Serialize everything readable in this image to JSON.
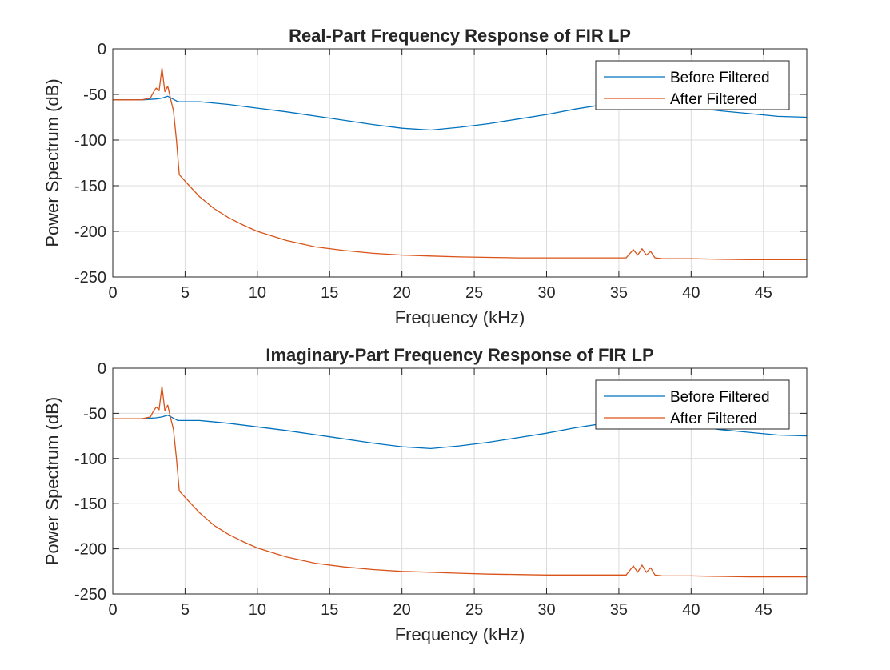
{
  "figure": {
    "colors": {
      "series_1": "#0072BD",
      "series_2": "#D95319",
      "grid": "#dcdcdc",
      "axes": "#262626"
    }
  },
  "chart_data": [
    {
      "type": "line",
      "title": "Real-Part Frequency Response of FIR LP",
      "xlabel": "Frequency (kHz)",
      "ylabel": "Power Spectrum (dB)",
      "xlim": [
        0,
        48
      ],
      "ylim": [
        -250,
        0
      ],
      "xticks": [
        0,
        5,
        10,
        15,
        20,
        25,
        30,
        35,
        40,
        45
      ],
      "yticks": [
        0,
        -50,
        -100,
        -150,
        -200,
        -250
      ],
      "grid": true,
      "legend_position": "top-right",
      "series": [
        {
          "name": "Before Filtered",
          "x": [
            0,
            2,
            3,
            3.4,
            3.8,
            4.5,
            6,
            8,
            10,
            12,
            15,
            18,
            20,
            22,
            24,
            26,
            28,
            30,
            32,
            34,
            35,
            36,
            37,
            38,
            40,
            42,
            44,
            46,
            48
          ],
          "y": [
            -56,
            -56,
            -55,
            -54,
            -52,
            -58,
            -58,
            -61,
            -65,
            -69,
            -76,
            -83,
            -87,
            -89,
            -86,
            -82,
            -77,
            -72,
            -66,
            -61,
            -59,
            -57,
            -58,
            -60,
            -64,
            -68,
            -71,
            -74,
            -75
          ]
        },
        {
          "name": "After Filtered",
          "x": [
            0,
            1,
            2,
            2.6,
            2.8,
            3.0,
            3.2,
            3.4,
            3.6,
            3.8,
            4.0,
            4.2,
            4.4,
            4.6,
            5,
            6,
            7,
            8,
            9,
            10,
            12,
            14,
            16,
            18,
            20,
            22,
            24,
            26,
            28,
            30,
            32,
            34,
            35.5,
            36,
            36.3,
            36.6,
            36.9,
            37.2,
            37.5,
            38,
            40,
            42,
            44,
            46,
            48
          ],
          "y": [
            -56,
            -56,
            -56,
            -54,
            -48,
            -43,
            -46,
            -21,
            -47,
            -41,
            -55,
            -68,
            -100,
            -138,
            -145,
            -162,
            -175,
            -185,
            -193,
            -200,
            -210,
            -217,
            -221,
            -224,
            -226,
            -227,
            -228,
            -228.5,
            -229,
            -229,
            -229,
            -229,
            -229,
            -220,
            -226,
            -219,
            -226,
            -222,
            -229,
            -230,
            -230,
            -230.5,
            -231,
            -231,
            -231
          ]
        }
      ]
    },
    {
      "type": "line",
      "title": "Imaginary-Part Frequency Response of FIR LP",
      "xlabel": "Frequency (kHz)",
      "ylabel": "Power Spectrum (dB)",
      "xlim": [
        0,
        48
      ],
      "ylim": [
        -250,
        0
      ],
      "xticks": [
        0,
        5,
        10,
        15,
        20,
        25,
        30,
        35,
        40,
        45
      ],
      "yticks": [
        0,
        -50,
        -100,
        -150,
        -200,
        -250
      ],
      "grid": true,
      "legend_position": "top-right",
      "series": [
        {
          "name": "Before Filtered",
          "x": [
            0,
            2,
            3,
            3.4,
            3.8,
            4.5,
            6,
            8,
            10,
            12,
            15,
            18,
            20,
            22,
            24,
            26,
            28,
            30,
            32,
            34,
            35,
            36,
            37,
            38,
            40,
            42,
            44,
            46,
            48
          ],
          "y": [
            -56,
            -56,
            -55,
            -54,
            -52,
            -58,
            -58,
            -61,
            -65,
            -69,
            -76,
            -83,
            -87,
            -89,
            -86,
            -82,
            -77,
            -72,
            -66,
            -61,
            -59,
            -57,
            -58,
            -60,
            -64,
            -68,
            -71,
            -74,
            -75
          ]
        },
        {
          "name": "After Filtered",
          "x": [
            0,
            1,
            2,
            2.6,
            2.8,
            3.0,
            3.2,
            3.4,
            3.6,
            3.8,
            4.0,
            4.2,
            4.4,
            4.6,
            5,
            6,
            7,
            8,
            9,
            10,
            12,
            14,
            16,
            18,
            20,
            22,
            24,
            26,
            28,
            30,
            32,
            34,
            35.5,
            36,
            36.3,
            36.6,
            36.9,
            37.2,
            37.5,
            38,
            40,
            42,
            44,
            46,
            48
          ],
          "y": [
            -56,
            -56,
            -56,
            -54,
            -48,
            -43,
            -46,
            -20,
            -47,
            -41,
            -55,
            -68,
            -100,
            -136,
            -143,
            -160,
            -174,
            -184,
            -192,
            -199,
            -209,
            -216,
            -220,
            -223,
            -225,
            -226,
            -227,
            -228,
            -228.5,
            -229,
            -229,
            -229,
            -229,
            -219,
            -226,
            -218,
            -226,
            -221,
            -229,
            -230,
            -230,
            -230.5,
            -231,
            -231,
            -231
          ]
        }
      ]
    }
  ]
}
